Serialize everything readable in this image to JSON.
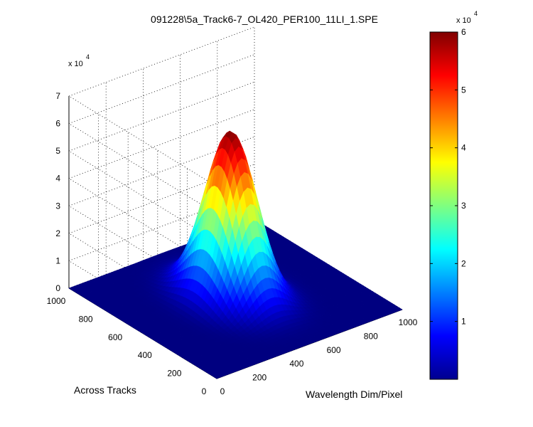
{
  "chart_data": {
    "type": "surface",
    "title": "091228\\5a_Track6-7_OL420_PER100_11LI_1.SPE",
    "xlabel": "Wavelength Dim/Pixel",
    "ylabel": "Across Tracks",
    "zlabel": "",
    "z_multiplier": "x 10",
    "z_multiplier_exp": "4",
    "xlim": [
      0,
      1000
    ],
    "ylim": [
      0,
      1000
    ],
    "zlim": [
      0,
      70000
    ],
    "x_ticks": [
      "0",
      "200",
      "400",
      "600",
      "800",
      "1000"
    ],
    "y_ticks": [
      "0",
      "200",
      "400",
      "600",
      "800",
      "1000"
    ],
    "z_ticks": [
      "0",
      "1",
      "2",
      "3",
      "4",
      "5",
      "6",
      "7"
    ],
    "grid": true,
    "colormap": "jet",
    "colorbar": {
      "range": [
        0,
        60000
      ],
      "ticks": [
        "1",
        "2",
        "3",
        "4",
        "5",
        "6"
      ],
      "multiplier": "x 10",
      "multiplier_exp": "4"
    },
    "peak": {
      "x_center": 500,
      "x_sigma": 95,
      "y_center": 530,
      "y_sigma": 135,
      "max_value": 60000
    }
  }
}
